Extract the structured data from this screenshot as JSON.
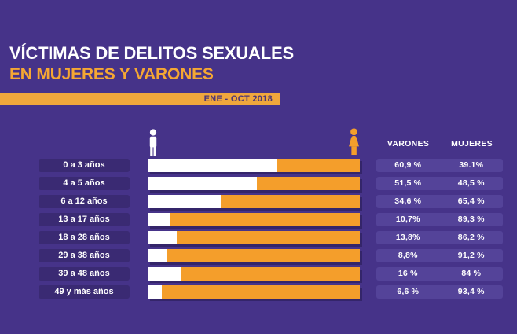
{
  "title": {
    "line1": "VÍCTIMAS DE DELITOS SEXUALES",
    "line2": "EN MUJERES Y VARONES"
  },
  "banner": {
    "label": "ENE - OCT 2018"
  },
  "columns": {
    "varones": "VARONES",
    "mujeres": "MUJERES"
  },
  "colors": {
    "background": "#463389",
    "label_box": "#3A2A73",
    "value_box": "#544399",
    "bar_varones": "#FFFFFF",
    "bar_mujeres": "#F49E2B",
    "banner_orange": "#F0A73C",
    "banner_text": "#4D3575",
    "title_orange": "#F5A733"
  },
  "chart_data": {
    "type": "bar",
    "orientation": "horizontal-stacked",
    "title": "VÍCTIMAS DE DELITOS SEXUALES EN MUJERES Y VARONES",
    "period": "ENE - OCT 2018",
    "categories": [
      "0 a 3 años",
      "4 a 5 años",
      "6 a 12 años",
      "13 a 17 años",
      "18 a 28 años",
      "29 a 38 años",
      "39 a 48 años",
      "49 y más años"
    ],
    "series": [
      {
        "name": "VARONES",
        "color": "#FFFFFF",
        "values": [
          60.9,
          51.5,
          34.6,
          10.7,
          13.8,
          8.8,
          16,
          6.6
        ],
        "labels": [
          "60,9 %",
          "51,5 %",
          "34,6 %",
          "10,7%",
          "13,8%",
          "8,8%",
          "16 %",
          "6,6 %"
        ]
      },
      {
        "name": "MUJERES",
        "color": "#F49E2B",
        "values": [
          39.1,
          48.5,
          65.4,
          89.3,
          86.2,
          91.2,
          84,
          93.4
        ],
        "labels": [
          "39.1%",
          "48,5 %",
          "65,4 %",
          "89,3 %",
          "86,2 %",
          "91,2 %",
          "84 %",
          "93,4 %"
        ]
      }
    ],
    "xlim": [
      0,
      100
    ],
    "legend_position": "top-columns",
    "grid": false
  }
}
